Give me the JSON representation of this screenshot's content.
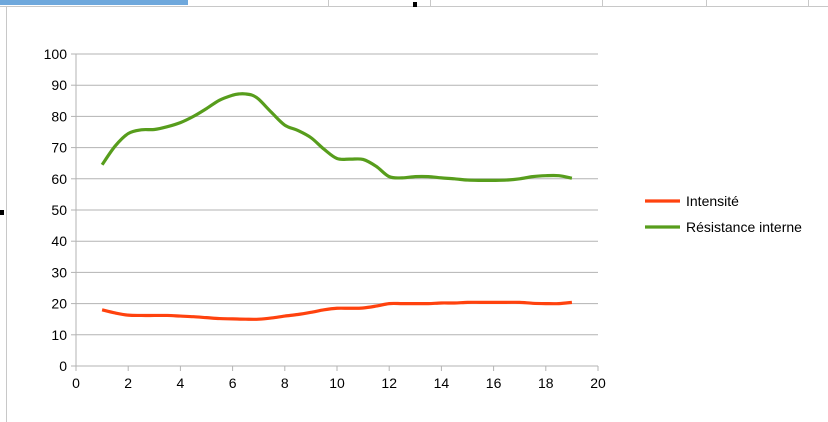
{
  "chart_data": {
    "type": "line",
    "title": "",
    "xlabel": "",
    "ylabel": "",
    "xlim": [
      0,
      20
    ],
    "ylim": [
      0,
      100
    ],
    "x_ticks": [
      0,
      2,
      4,
      6,
      8,
      10,
      12,
      14,
      16,
      18,
      20
    ],
    "y_ticks": [
      0,
      10,
      20,
      30,
      40,
      50,
      60,
      70,
      80,
      90,
      100
    ],
    "grid": "horizontal",
    "legend_position": "right",
    "series": [
      {
        "name": "Intensité",
        "color": "#ff420e",
        "x": [
          1,
          1.5,
          2,
          2.5,
          3,
          3.5,
          4,
          4.5,
          5,
          5.5,
          6,
          6.5,
          7,
          7.5,
          8,
          8.5,
          9,
          9.5,
          10,
          10.5,
          11,
          11.5,
          12,
          12.5,
          13,
          13.5,
          14,
          14.5,
          15,
          15.5,
          16,
          16.5,
          17,
          17.5,
          18,
          18.5,
          19
        ],
        "values": [
          18,
          17,
          16.3,
          16.2,
          16.2,
          16.2,
          16,
          15.8,
          15.5,
          15.2,
          15.1,
          15.0,
          15.0,
          15.4,
          16,
          16.5,
          17.2,
          18,
          18.5,
          18.5,
          18.6,
          19.2,
          20,
          20,
          20,
          20,
          20.2,
          20.2,
          20.4,
          20.4,
          20.4,
          20.4,
          20.4,
          20.1,
          20,
          20,
          20.4
        ]
      },
      {
        "name": "Résistance interne",
        "color": "#579d1c",
        "x": [
          1,
          1.5,
          2,
          2.5,
          3,
          3.5,
          4,
          4.5,
          5,
          5.5,
          6,
          6.25,
          6.5,
          6.75,
          7,
          7.5,
          8,
          8.5,
          9,
          9.5,
          10,
          10.5,
          11,
          11.5,
          12,
          12.5,
          13,
          13.5,
          14,
          14.5,
          15,
          15.5,
          16,
          16.5,
          17,
          17.5,
          18,
          18.5,
          19
        ],
        "values": [
          64.5,
          70.5,
          74.5,
          75.7,
          75.8,
          76.7,
          78,
          80,
          82.5,
          85.2,
          86.8,
          87.2,
          87.2,
          86.8,
          85.5,
          81.2,
          77.2,
          75.5,
          73.2,
          69.5,
          66.5,
          66.3,
          66.2,
          64,
          60.7,
          60.3,
          60.7,
          60.7,
          60.3,
          60,
          59.6,
          59.5,
          59.5,
          59.6,
          60,
          60.7,
          61,
          61,
          60.2
        ]
      }
    ]
  }
}
